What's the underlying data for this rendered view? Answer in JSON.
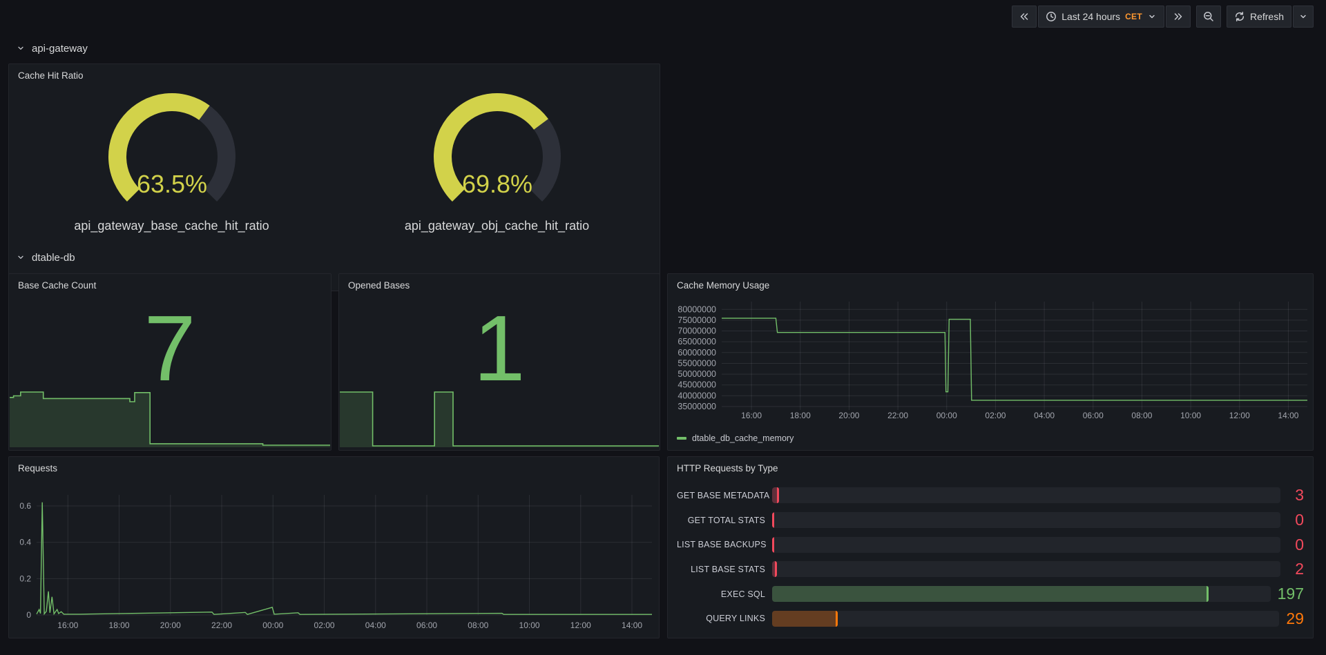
{
  "colors": {
    "green": "#73BF69",
    "yellow": "#d2d24a",
    "red": "#F2495C",
    "orange": "#FF780A",
    "grid": "rgba(240,245,255,0.09)",
    "tick_text": "#a2a5ad",
    "gauge_track": "#2d3039",
    "spark_fill": "rgba(115,191,105,0.18)"
  },
  "toolbar": {
    "time_range_label": "Last 24 hours",
    "timezone": "CET",
    "refresh_label": "Refresh"
  },
  "rows": [
    {
      "title": "api-gateway"
    },
    {
      "title": "dtable-db"
    }
  ],
  "chart_data": [
    {
      "id": "cache-hit-ratio",
      "type": "gauge",
      "title": "Cache Hit Ratio",
      "min": 0,
      "max": 100,
      "unit": "%",
      "series": [
        {
          "name": "api_gateway_base_cache_hit_ratio",
          "value": 63.5,
          "display": "63.5%"
        },
        {
          "name": "api_gateway_obj_cache_hit_ratio",
          "value": 69.8,
          "display": "69.8%"
        }
      ]
    },
    {
      "id": "base-cache-count",
      "type": "stat",
      "title": "Base Cache Count",
      "value": 7,
      "display": "7",
      "sparkline_normalized": [
        [
          0,
          0.9
        ],
        [
          0.012,
          0.9
        ],
        [
          0.012,
          0.93
        ],
        [
          0.034,
          0.93
        ],
        [
          0.034,
          1.0
        ],
        [
          0.105,
          1.0
        ],
        [
          0.105,
          0.88
        ],
        [
          0.375,
          0.88
        ],
        [
          0.375,
          0.82
        ],
        [
          0.39,
          0.82
        ],
        [
          0.39,
          0.99
        ],
        [
          0.438,
          0.99
        ],
        [
          0.438,
          0.04
        ],
        [
          0.79,
          0.04
        ],
        [
          0.79,
          0.013
        ],
        [
          1,
          0.013
        ]
      ]
    },
    {
      "id": "opened-bases",
      "type": "stat",
      "title": "Opened Bases",
      "value": 1,
      "display": "1",
      "sparkline_normalized": [
        [
          0,
          1
        ],
        [
          0.103,
          1
        ],
        [
          0.103,
          0
        ],
        [
          0.297,
          0
        ],
        [
          0.297,
          1
        ],
        [
          0.355,
          1
        ],
        [
          0.355,
          0
        ],
        [
          1,
          0
        ]
      ]
    },
    {
      "id": "cache-memory",
      "type": "line",
      "title": "Cache Memory Usage",
      "legend": [
        "dtable_db_cache_memory"
      ],
      "xlim": [
        14.78,
        38.78
      ],
      "ylim": [
        33400000,
        83600000
      ],
      "yticks": [
        35000000,
        40000000,
        45000000,
        50000000,
        55000000,
        60000000,
        65000000,
        70000000,
        75000000,
        80000000
      ],
      "ylabels": [
        "35000000",
        "40000000",
        "45000000",
        "50000000",
        "55000000",
        "60000000",
        "65000000",
        "70000000",
        "75000000",
        "80000000"
      ],
      "xticks": [
        16,
        18,
        20,
        22,
        24,
        26,
        28,
        30,
        32,
        34,
        36,
        38
      ],
      "xlabels": [
        "16:00",
        "18:00",
        "20:00",
        "22:00",
        "00:00",
        "02:00",
        "04:00",
        "06:00",
        "08:00",
        "10:00",
        "12:00",
        "14:00"
      ],
      "points": [
        [
          14.78,
          75900000
        ],
        [
          17.0,
          75900000
        ],
        [
          17.06,
          69300000
        ],
        [
          23.93,
          69300000
        ],
        [
          23.97,
          41800000
        ],
        [
          24.05,
          41800000
        ],
        [
          24.1,
          75400000
        ],
        [
          24.97,
          75400000
        ],
        [
          25.02,
          37900000
        ],
        [
          38.78,
          37900000
        ]
      ]
    },
    {
      "id": "requests",
      "type": "line",
      "title": "Requests",
      "legend": [],
      "xlim": [
        14.78,
        38.78
      ],
      "ylim": [
        0,
        0.661
      ],
      "yticks": [
        0,
        0.2,
        0.4,
        0.6
      ],
      "ylabels": [
        "0",
        "0.2",
        "0.4",
        "0.6"
      ],
      "xticks": [
        16,
        18,
        20,
        22,
        24,
        26,
        28,
        30,
        32,
        34,
        36,
        38
      ],
      "xlabels": [
        "16:00",
        "18:00",
        "20:00",
        "22:00",
        "00:00",
        "02:00",
        "04:00",
        "06:00",
        "08:00",
        "10:00",
        "12:00",
        "14:00"
      ],
      "points": [
        [
          14.78,
          0.005
        ],
        [
          14.88,
          0.03
        ],
        [
          14.93,
          0.008
        ],
        [
          15.0,
          0.62
        ],
        [
          15.08,
          0.006
        ],
        [
          15.16,
          0.02
        ],
        [
          15.24,
          0.13
        ],
        [
          15.3,
          0.012
        ],
        [
          15.38,
          0.1
        ],
        [
          15.46,
          0.006
        ],
        [
          15.58,
          0.03
        ],
        [
          15.64,
          0.008
        ],
        [
          15.74,
          0.018
        ],
        [
          15.84,
          0.004
        ],
        [
          16.5,
          0.004
        ],
        [
          21.62,
          0.016
        ],
        [
          21.7,
          0.003
        ],
        [
          22.92,
          0.014
        ],
        [
          23.0,
          0.003
        ],
        [
          23.97,
          0.042
        ],
        [
          24.05,
          0.004
        ],
        [
          24.98,
          0.012
        ],
        [
          25.05,
          0.003
        ],
        [
          32.93,
          0.009
        ],
        [
          33.0,
          0.003
        ],
        [
          38.78,
          0.003
        ]
      ]
    },
    {
      "id": "http-requests-by-type",
      "type": "bar",
      "title": "HTTP Requests by Type",
      "scale_max": 225,
      "categories": [
        "GET BASE METADATA",
        "GET TOTAL STATS",
        "LIST BASE BACKUPS",
        "LIST BASE STATS",
        "EXEC SQL",
        "QUERY LINKS"
      ],
      "values": [
        3,
        0,
        0,
        2,
        197,
        29
      ],
      "value_colors": [
        "red",
        "red",
        "red",
        "red",
        "green",
        "orange"
      ]
    }
  ]
}
